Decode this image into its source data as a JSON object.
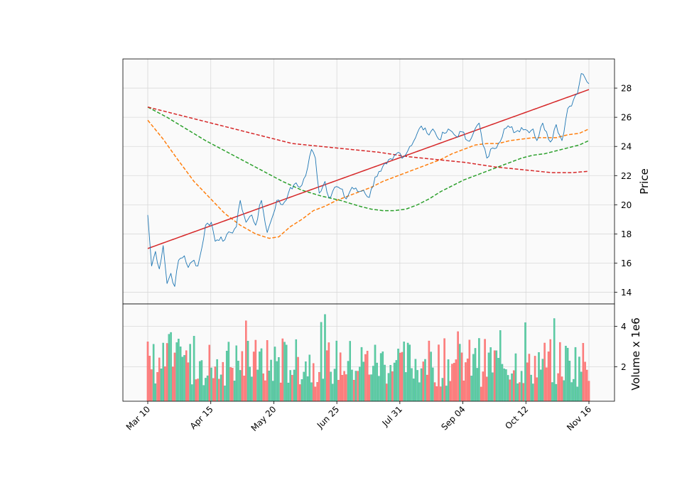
{
  "chart_data": [
    {
      "type": "line",
      "panel": "price",
      "ylabel": "Price",
      "ylim": [
        13.2,
        30.0
      ],
      "yticks": [
        14,
        16,
        18,
        20,
        22,
        24,
        26,
        28
      ],
      "xticks": [
        "Mar 10",
        "Apr 15",
        "May 20",
        "Jun 25",
        "Jul 31",
        "Sep 04",
        "Oct 12",
        "Nov 16"
      ],
      "grid": true,
      "colors": {
        "price": "#1f77b4",
        "ma_short": "#ff7f0e",
        "ma_mid": "#2ca02c",
        "ma_long": "#d62728",
        "trend": "#d62728",
        "background": "#fafafa"
      },
      "series": [
        {
          "style": "solid-thin",
          "keypoints": [
            [
              0,
              19.3
            ],
            [
              2,
              15.8
            ],
            [
              4,
              16.8
            ],
            [
              6,
              15.6
            ],
            [
              8,
              17.2
            ],
            [
              10,
              14.6
            ],
            [
              12,
              15.3
            ],
            [
              14,
              14.4
            ],
            [
              16,
              16.2
            ],
            [
              19,
              16.5
            ],
            [
              21,
              15.7
            ],
            [
              24,
              16.2
            ],
            [
              26,
              15.8
            ],
            [
              28,
              17.0
            ],
            [
              30,
              18.6
            ],
            [
              33,
              18.8
            ],
            [
              35,
              17.5
            ],
            [
              38,
              17.8
            ],
            [
              40,
              17.6
            ],
            [
              43,
              18.1
            ],
            [
              46,
              18.5
            ],
            [
              48,
              20.3
            ],
            [
              51,
              18.8
            ],
            [
              54,
              19.3
            ],
            [
              56,
              18.6
            ],
            [
              59,
              20.3
            ],
            [
              62,
              18.1
            ],
            [
              64,
              18.9
            ],
            [
              67,
              20.3
            ],
            [
              70,
              20.0
            ],
            [
              73,
              20.8
            ],
            [
              76,
              21.4
            ],
            [
              79,
              21.2
            ],
            [
              82,
              22.0
            ],
            [
              85,
              23.8
            ],
            [
              87,
              23.2
            ],
            [
              89,
              20.8
            ],
            [
              92,
              21.6
            ],
            [
              94,
              20.5
            ],
            [
              97,
              21.2
            ],
            [
              100,
              21.1
            ],
            [
              103,
              20.4
            ],
            [
              106,
              21.2
            ],
            [
              109,
              20.9
            ],
            [
              112,
              21.0
            ],
            [
              115,
              20.5
            ],
            [
              118,
              21.9
            ],
            [
              121,
              22.3
            ],
            [
              124,
              22.8
            ],
            [
              127,
              23.1
            ],
            [
              130,
              23.6
            ],
            [
              133,
              23.3
            ],
            [
              136,
              24.0
            ],
            [
              139,
              24.6
            ],
            [
              142,
              25.4
            ],
            [
              145,
              24.9
            ],
            [
              148,
              25.2
            ],
            [
              151,
              24.5
            ],
            [
              154,
              24.9
            ],
            [
              157,
              25.1
            ],
            [
              160,
              24.7
            ],
            [
              163,
              25.0
            ],
            [
              166,
              24.4
            ],
            [
              169,
              24.9
            ],
            [
              172,
              25.6
            ],
            [
              174,
              24.1
            ],
            [
              176,
              23.2
            ],
            [
              179,
              23.9
            ],
            [
              182,
              24.2
            ],
            [
              185,
              25.2
            ],
            [
              188,
              25.3
            ],
            [
              191,
              25.0
            ],
            [
              194,
              25.3
            ],
            [
              197,
              25.1
            ],
            [
              200,
              25.2
            ],
            [
              202,
              24.4
            ],
            [
              205,
              25.6
            ],
            [
              207,
              25.0
            ],
            [
              209,
              24.3
            ],
            [
              212,
              25.5
            ],
            [
              215,
              24.4
            ],
            [
              218,
              26.6
            ],
            [
              221,
              27.2
            ],
            [
              223,
              27.6
            ],
            [
              225,
              29.0
            ],
            [
              227,
              28.7
            ],
            [
              229,
              28.3
            ]
          ]
        },
        {
          "style": "dashed",
          "name_key": "ma_short",
          "keypoints": [
            [
              0,
              25.8
            ],
            [
              8,
              24.5
            ],
            [
              15,
              23.2
            ],
            [
              24,
              21.6
            ],
            [
              32,
              20.5
            ],
            [
              40,
              19.4
            ],
            [
              48,
              18.6
            ],
            [
              56,
              18.0
            ],
            [
              63,
              17.7
            ],
            [
              68,
              17.8
            ],
            [
              74,
              18.5
            ],
            [
              80,
              19.0
            ],
            [
              86,
              19.6
            ],
            [
              92,
              19.9
            ],
            [
              98,
              20.3
            ],
            [
              104,
              20.6
            ],
            [
              110,
              20.9
            ],
            [
              116,
              21.2
            ],
            [
              122,
              21.6
            ],
            [
              128,
              21.9
            ],
            [
              134,
              22.2
            ],
            [
              140,
              22.5
            ],
            [
              146,
              22.8
            ],
            [
              152,
              23.1
            ],
            [
              158,
              23.5
            ],
            [
              164,
              23.8
            ],
            [
              170,
              24.1
            ],
            [
              176,
              24.2
            ],
            [
              182,
              24.2
            ],
            [
              188,
              24.4
            ],
            [
              194,
              24.5
            ],
            [
              200,
              24.6
            ],
            [
              206,
              24.6
            ],
            [
              212,
              24.6
            ],
            [
              218,
              24.8
            ],
            [
              224,
              24.9
            ],
            [
              229,
              25.2
            ]
          ]
        },
        {
          "style": "dashed",
          "name_key": "ma_mid",
          "keypoints": [
            [
              0,
              26.7
            ],
            [
              10,
              26.0
            ],
            [
              20,
              25.2
            ],
            [
              30,
              24.4
            ],
            [
              40,
              23.7
            ],
            [
              50,
              23.0
            ],
            [
              60,
              22.3
            ],
            [
              70,
              21.6
            ],
            [
              80,
              21.0
            ],
            [
              90,
              20.6
            ],
            [
              100,
              20.3
            ],
            [
              110,
              19.9
            ],
            [
              116,
              19.7
            ],
            [
              122,
              19.6
            ],
            [
              128,
              19.6
            ],
            [
              134,
              19.7
            ],
            [
              140,
              20.0
            ],
            [
              146,
              20.4
            ],
            [
              152,
              20.9
            ],
            [
              158,
              21.3
            ],
            [
              164,
              21.7
            ],
            [
              170,
              22.0
            ],
            [
              176,
              22.3
            ],
            [
              182,
              22.6
            ],
            [
              188,
              22.9
            ],
            [
              194,
              23.2
            ],
            [
              200,
              23.4
            ],
            [
              206,
              23.5
            ],
            [
              212,
              23.7
            ],
            [
              218,
              23.9
            ],
            [
              224,
              24.1
            ],
            [
              229,
              24.4
            ]
          ]
        },
        {
          "style": "dashed",
          "name_key": "ma_long",
          "keypoints": [
            [
              0,
              26.7
            ],
            [
              15,
              26.2
            ],
            [
              30,
              25.7
            ],
            [
              45,
              25.2
            ],
            [
              60,
              24.7
            ],
            [
              75,
              24.2
            ],
            [
              90,
              24.0
            ],
            [
              105,
              23.8
            ],
            [
              120,
              23.6
            ],
            [
              135,
              23.3
            ],
            [
              150,
              23.1
            ],
            [
              165,
              22.9
            ],
            [
              180,
              22.6
            ],
            [
              195,
              22.4
            ],
            [
              210,
              22.2
            ],
            [
              220,
              22.2
            ],
            [
              229,
              22.3
            ]
          ]
        },
        {
          "style": "solid-trend",
          "name_key": "trend",
          "keypoints": [
            [
              0,
              17.0
            ],
            [
              229,
              27.9
            ]
          ]
        }
      ]
    },
    {
      "type": "bar",
      "panel": "volume",
      "ylabel": "Volume x 1e6",
      "ylim": [
        0.3,
        5.1
      ],
      "yticks": [
        2,
        4
      ],
      "grid": true,
      "colors": {
        "up": "#26a69a",
        "up_fill": "#5fcf9f",
        "down": "#ef5350",
        "down_fill": "#ff7f7f"
      },
      "bars_count": 230,
      "seed": 7
    }
  ]
}
